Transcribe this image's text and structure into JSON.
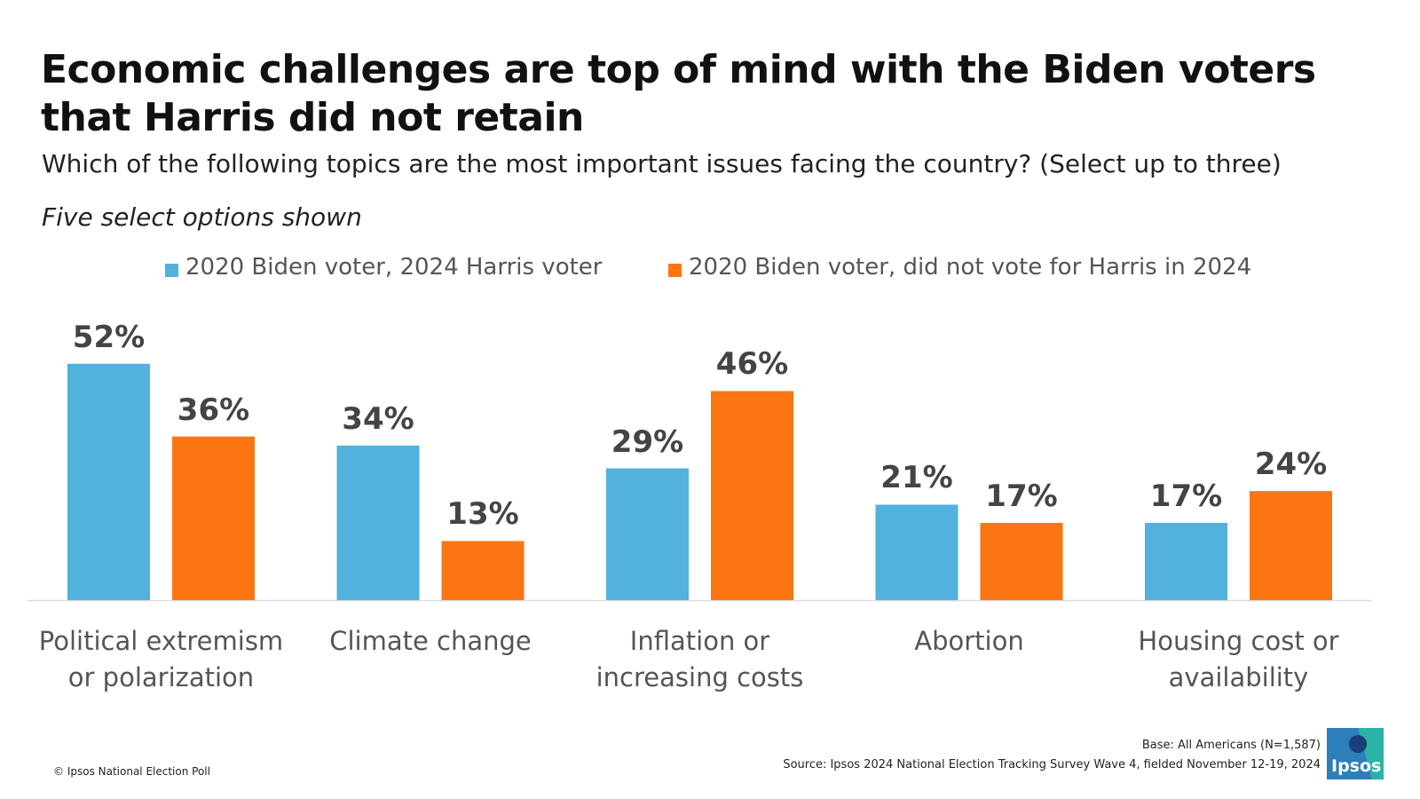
{
  "chart_data": {
    "type": "bar",
    "title": "Economic challenges are top of mind with the Biden voters that Harris did not retain",
    "subtitle": "Which of the following topics are the most important issues facing the country? (Select up to three)",
    "note": "Five select options shown",
    "categories": [
      "Political extremism or polarization",
      "Climate change",
      "Inflation or increasing costs",
      "Abortion",
      "Housing cost or availability"
    ],
    "series": [
      {
        "name": "2020 Biden voter, 2024 Harris voter",
        "color": "#52b1dd",
        "values": [
          52,
          34,
          29,
          21,
          17
        ],
        "value_labels": [
          "52%",
          "34%",
          "29%",
          "21%",
          "17%"
        ]
      },
      {
        "name": "2020 Biden voter, did not vote for Harris in 2024",
        "color": "#fb7613",
        "values": [
          36,
          13,
          46,
          17,
          24
        ],
        "value_labels": [
          "36%",
          "13%",
          "46%",
          "17%",
          "24%"
        ]
      }
    ],
    "base": "Base: All Americans (N=1,587)",
    "source": "Source: Ipsos 2024 National Election Tracking Survey Wave 4, fielded November 12-19, 2024",
    "copyright": "© Ipsos National Election Poll",
    "logo": "Ipsos"
  }
}
